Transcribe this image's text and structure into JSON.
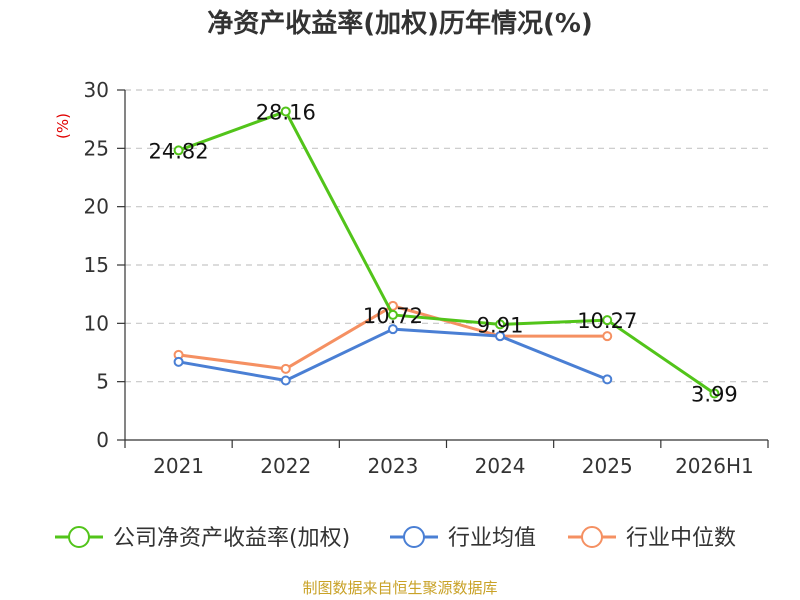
{
  "chart_data": {
    "type": "line",
    "title": "净资产收益率(加权)历年情况(%)",
    "ylabel": "(%)",
    "xlabel": "",
    "categories": [
      "2021",
      "2022",
      "2023",
      "2024",
      "2025",
      "2026H1"
    ],
    "ylim": [
      0,
      30
    ],
    "yticks": [
      0,
      5,
      10,
      15,
      20,
      25,
      30
    ],
    "grid": true,
    "legend_position": "bottom",
    "series": [
      {
        "name": "公司净资产收益率(加权)",
        "color": "#52c41a",
        "values": [
          24.82,
          28.16,
          10.72,
          9.91,
          10.27,
          3.99
        ],
        "labels": [
          "24.82",
          "28.16",
          "10.72",
          "9.91",
          "10.27",
          "3.99"
        ]
      },
      {
        "name": "行业均值",
        "color": "#4a7fd4",
        "values": [
          6.7,
          5.1,
          9.5,
          8.9,
          5.2,
          null
        ]
      },
      {
        "name": "行业中位数",
        "color": "#f59062",
        "values": [
          7.3,
          6.1,
          11.5,
          8.9,
          8.9,
          null
        ]
      }
    ]
  },
  "source_text": "制图数据来自恒生聚源数据库"
}
